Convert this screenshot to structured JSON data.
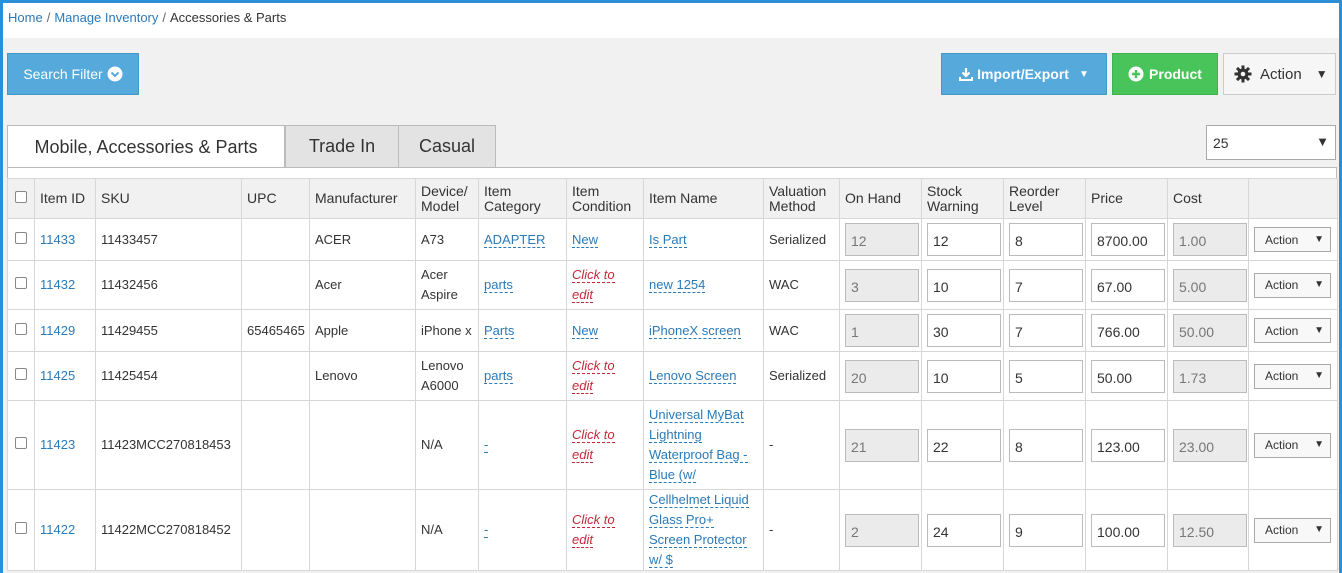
{
  "breadcrumb": {
    "home": "Home",
    "inventory": "Manage Inventory",
    "current": "Accessories & Parts",
    "sep": "/"
  },
  "toolbar": {
    "search_filter": "Search Filter",
    "import_export": "Import/Export",
    "product": "Product",
    "action": "Action"
  },
  "tabs": [
    "Mobile, Accessories & Parts",
    "Trade In",
    "Casual"
  ],
  "page_size": "25",
  "columns": [
    "Item ID",
    "SKU",
    "UPC",
    "Manufacturer",
    "Device/ Model",
    "Item Category",
    "Item Condition",
    "Item Name",
    "Valuation Method",
    "On Hand",
    "Stock Warning",
    "Reorder Level",
    "Price",
    "Cost",
    ""
  ],
  "row_action": "Action",
  "rows": [
    {
      "id": "11433",
      "sku": "11433457",
      "upc": "",
      "manufacturer": "ACER",
      "model": "A73",
      "category": "ADAPTER",
      "condition": "New",
      "name": "Is Part",
      "valuation": "Serialized",
      "on_hand": "12",
      "stock_warning": "12",
      "reorder": "8",
      "price": "8700.00",
      "cost": "1.00"
    },
    {
      "id": "11432",
      "sku": "11432456",
      "upc": "",
      "manufacturer": "Acer",
      "model": "Acer Aspire",
      "category": "parts",
      "condition": "Click to edit",
      "name": "new 1254",
      "valuation": "WAC",
      "on_hand": "3",
      "stock_warning": "10",
      "reorder": "7",
      "price": "67.00",
      "cost": "5.00"
    },
    {
      "id": "11429",
      "sku": "11429455",
      "upc": "65465465",
      "manufacturer": "Apple",
      "model": "iPhone x",
      "category": "Parts",
      "condition": "New",
      "name": "iPhoneX screen",
      "valuation": "WAC",
      "on_hand": "1",
      "stock_warning": "30",
      "reorder": "7",
      "price": "766.00",
      "cost": "50.00"
    },
    {
      "id": "11425",
      "sku": "11425454",
      "upc": "",
      "manufacturer": "Lenovo",
      "model": "Lenovo A6000",
      "category": "parts",
      "condition": "Click to edit",
      "name": "Lenovo Screen",
      "valuation": "Serialized",
      "on_hand": "20",
      "stock_warning": "10",
      "reorder": "5",
      "price": "50.00",
      "cost": "1.73"
    },
    {
      "id": "11423",
      "sku": "11423MCC270818453",
      "upc": "",
      "manufacturer": "",
      "model": "N/A",
      "category": "-",
      "condition": "Click to edit",
      "name": "Universal MyBat Lightning Waterproof Bag - Blue (w/",
      "valuation": "-",
      "on_hand": "21",
      "stock_warning": "22",
      "reorder": "8",
      "price": "123.00",
      "cost": "23.00"
    },
    {
      "id": "11422",
      "sku": "11422MCC270818452",
      "upc": "",
      "manufacturer": "",
      "model": "N/A",
      "category": "-",
      "condition": "Click to edit",
      "name": "Cellhelmet Liquid Glass Pro+ Screen Protector w/ $",
      "valuation": "-",
      "on_hand": "2",
      "stock_warning": "24",
      "reorder": "9",
      "price": "100.00",
      "cost": "12.50"
    }
  ]
}
